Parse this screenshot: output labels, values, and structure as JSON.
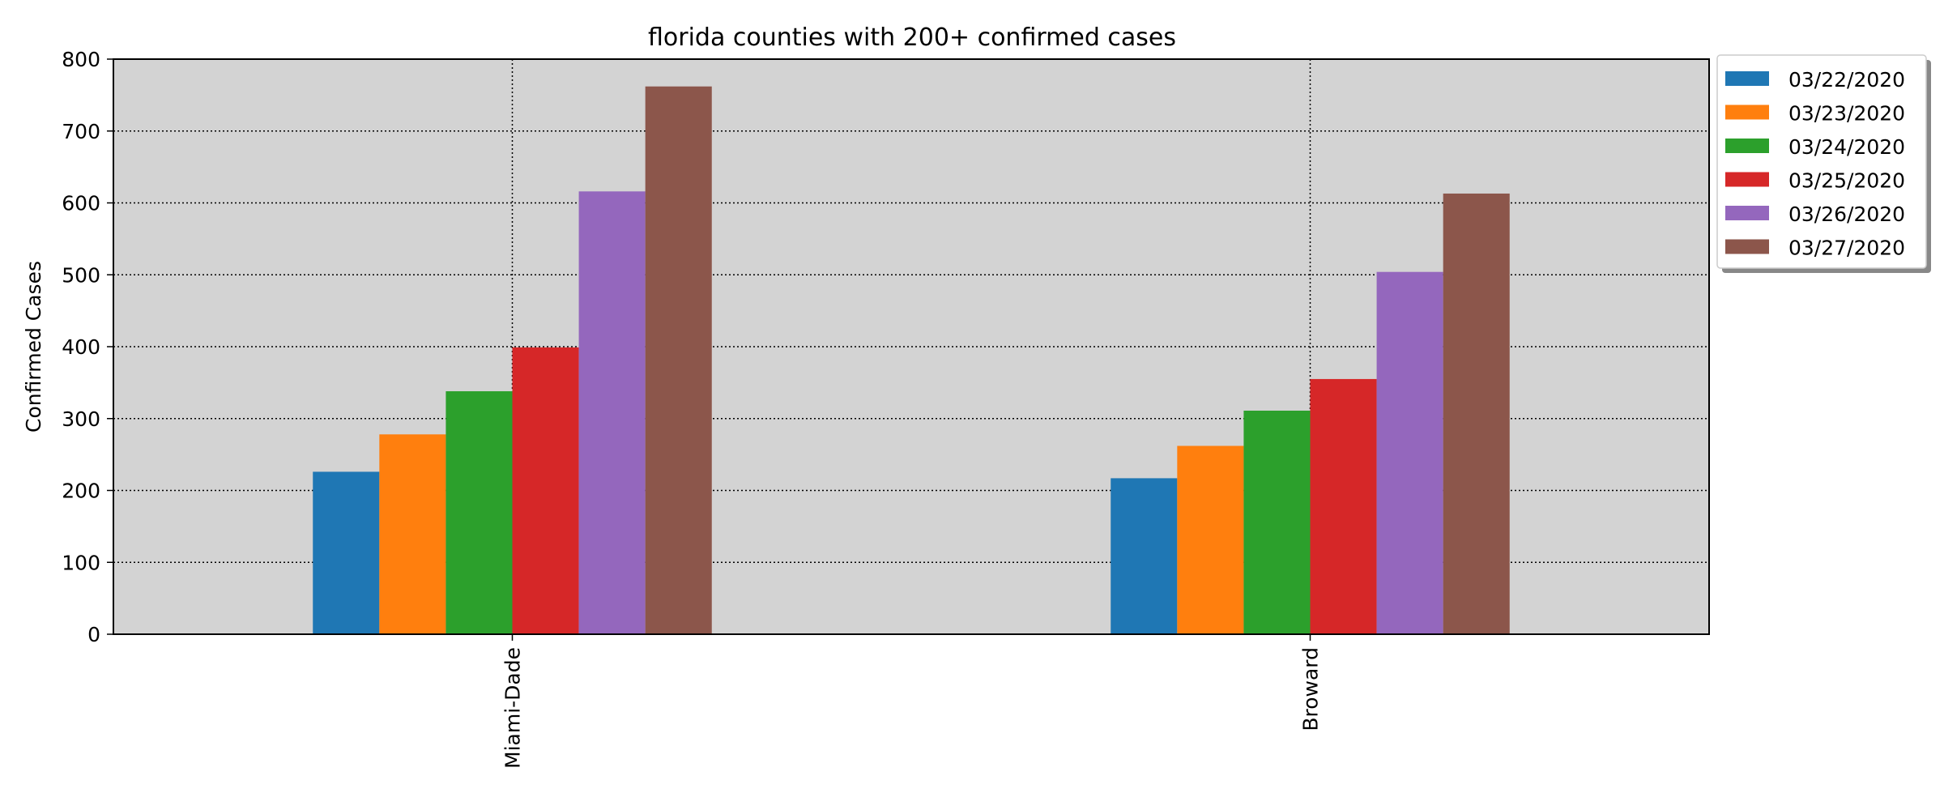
{
  "chart_data": {
    "type": "bar",
    "title": "florida counties with 200+ confirmed cases",
    "xlabel": "",
    "ylabel": "Confirmed Cases",
    "ylim": [
      0,
      800
    ],
    "yticks": [
      0,
      100,
      200,
      300,
      400,
      500,
      600,
      700,
      800
    ],
    "grid": true,
    "legend_position": "outside-top-right",
    "categories": [
      "Miami-Dade",
      "Broward"
    ],
    "series": [
      {
        "name": "03/22/2020",
        "color": "#1f77b4",
        "values": [
          226,
          217
        ]
      },
      {
        "name": "03/23/2020",
        "color": "#ff7f0e",
        "values": [
          278,
          262
        ]
      },
      {
        "name": "03/24/2020",
        "color": "#2ca02c",
        "values": [
          338,
          311
        ]
      },
      {
        "name": "03/25/2020",
        "color": "#d62728",
        "values": [
          399,
          355
        ]
      },
      {
        "name": "03/26/2020",
        "color": "#9467bd",
        "values": [
          616,
          504
        ]
      },
      {
        "name": "03/27/2020",
        "color": "#8c564b",
        "values": [
          762,
          613
        ]
      }
    ],
    "plot_background": "#d3d3d3"
  }
}
